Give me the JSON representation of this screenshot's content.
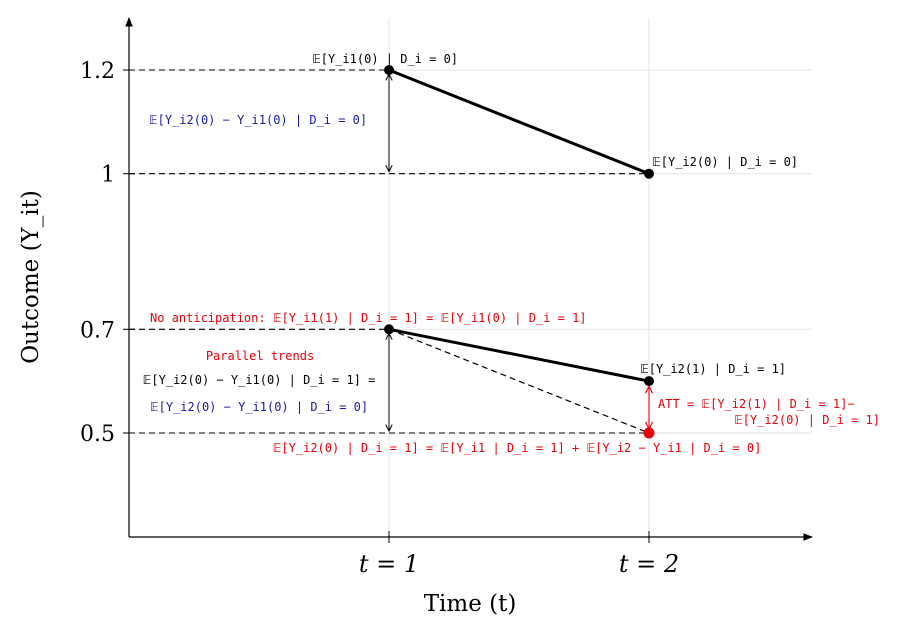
{
  "chart_data": {
    "type": "line",
    "xlabel": "Time (t)",
    "ylabel": "Outcome (Y_it)",
    "categories": [
      "t = 1",
      "t = 2"
    ],
    "yticks": [
      0.5,
      0.7,
      1,
      1.2
    ],
    "ytick_labels": [
      "0.5",
      "0.7",
      "1",
      "1.2"
    ],
    "ylim": [
      0.3,
      1.3
    ],
    "grid": true,
    "series": [
      {
        "values": [
          1.2,
          1.0
        ],
        "style": "solid-thick",
        "color": "#000000"
      },
      {
        "values": [
          0.7,
          0.6
        ],
        "style": "solid-thick",
        "color": "#000000"
      },
      {
        "values": [
          0.7,
          0.5
        ],
        "style": "dashed",
        "color": "#000000"
      }
    ],
    "counterfactual_point": {
      "x": "t = 2",
      "y": 0.5,
      "color": "#e8000b"
    },
    "annotations": {
      "p_control_t1": "𝔼[Y_i1(0) | D_i = 0]",
      "p_control_t2": "𝔼[Y_i2(0) | D_i = 0]",
      "control_trend": "𝔼[Y_i2(0) − Y_i1(0) | D_i = 0]",
      "no_anticipation": "No anticipation: 𝔼[Y_i1(1) | D_i = 1] = 𝔼[Y_i1(0) | D_i = 1]",
      "parallel_trends_title": "Parallel trends",
      "parallel_trends_lhs": "𝔼[Y_i2(0) − Y_i1(0) | D_i = 1] =",
      "parallel_trends_rhs": "𝔼[Y_i2(0) − Y_i1(0) | D_i = 0]",
      "p_treated_t2": "𝔼[Y_i2(1) | D_i = 1]",
      "att_line1": "ATT = 𝔼[Y_i2(1) | D_i = 1]−",
      "att_line2": "𝔼[Y_i2(0) | D_i = 1]",
      "counterfactual_eq": "𝔼[Y_i2(0) | D_i = 1] = 𝔼[Y_i1 | D_i = 1] + 𝔼[Y_i2 − Y_i1 | D_i = 0]"
    },
    "colors": {
      "black": "#000000",
      "red": "#e8000b",
      "blue": "#1a1aa6",
      "grid": "#e6e6e6"
    }
  }
}
